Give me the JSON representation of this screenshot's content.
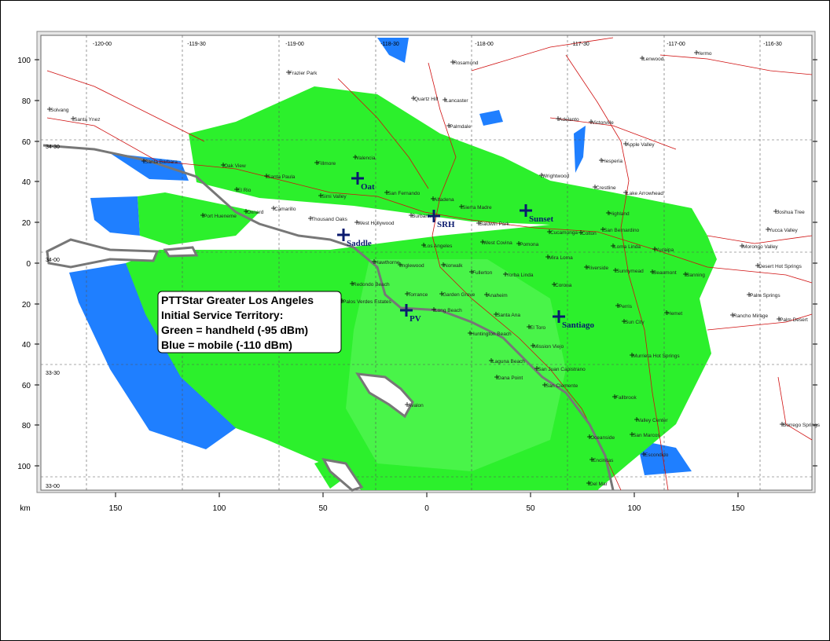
{
  "map": {
    "legend": [
      "PTTStar Greater Los Angeles",
      "Initial Service Territory:",
      "Green = handheld (-95 dBm)",
      "Blue = mobile (-110 dBm)"
    ],
    "sites": [
      "Oat",
      "SRH",
      "Sunset",
      "Saddle",
      "PV",
      "Santiago"
    ],
    "longitude_labels": [
      "-120-00",
      "-119-30",
      "-119-00",
      "-118-30",
      "-118-00",
      "-117-30",
      "-117-00",
      "-116-30"
    ],
    "latitude_labels": [
      "34-30",
      "34-00",
      "33-30",
      "33-00"
    ],
    "y_axis_labels": [
      "100",
      "80",
      "60",
      "40",
      "20",
      "0",
      "20",
      "40",
      "60",
      "80",
      "100"
    ],
    "x_axis_labels": [
      "150",
      "100",
      "50",
      "0",
      "50",
      "100",
      "150"
    ],
    "x_axis_unit": "km",
    "places": [
      "Rosamond",
      "Quartz Hill",
      "Lancaster",
      "Palmdale",
      "Lenwood",
      "Yermo",
      "Adelanto",
      "Victorville",
      "Apple Valley",
      "Hesperia",
      "Wrightwood",
      "Crestline",
      "Lake Arrowhead",
      "Solvang",
      "Santa Ynez",
      "Santa Barbara",
      "Oak View",
      "Fillmore",
      "Santa Paula",
      "Valencia",
      "El Rio",
      "Oxnard",
      "Port Hueneme",
      "Camarillo",
      "Simi Valley",
      "Thousand Oaks",
      "San Fernando",
      "Altadena",
      "Sierra Madre",
      "Burbank",
      "West Hollywood",
      "Baldwin Park",
      "Cucamonga",
      "Colton",
      "San Bernardino",
      "Highland",
      "Yucaipa",
      "Loma Linda",
      "Los Angeles",
      "West Covina",
      "Pomona",
      "Mira Loma",
      "Riverside",
      "Hawthorne",
      "Inglewood",
      "Norwalk",
      "Yorba Linda",
      "Corona",
      "Redondo Beach",
      "Torrance",
      "Garden Grove",
      "Anaheim",
      "Palos Verdes Estates",
      "Long Beach",
      "Fullerton",
      "Santa Ana",
      "El Toro",
      "Huntington Beach",
      "Mission Viejo",
      "Laguna Beach",
      "San Juan Capistrano",
      "Dana Point",
      "San Clemente",
      "Avalon",
      "Oceanside",
      "Escondido",
      "Encinitas",
      "Del Mar",
      "Hemet",
      "Perris",
      "Sun City",
      "Murrieta Hot Springs",
      "Fallbrook",
      "Valley Center",
      "San Marcos",
      "Joshua Tree",
      "Yucca Valley",
      "Morongo Valley",
      "Desert Hot Springs",
      "Palm Springs",
      "Rancho Mirage",
      "Palm Desert",
      "Borrego Springs",
      "Sunnymead",
      "Beaumont",
      "Banning",
      "Frazier Park"
    ]
  }
}
